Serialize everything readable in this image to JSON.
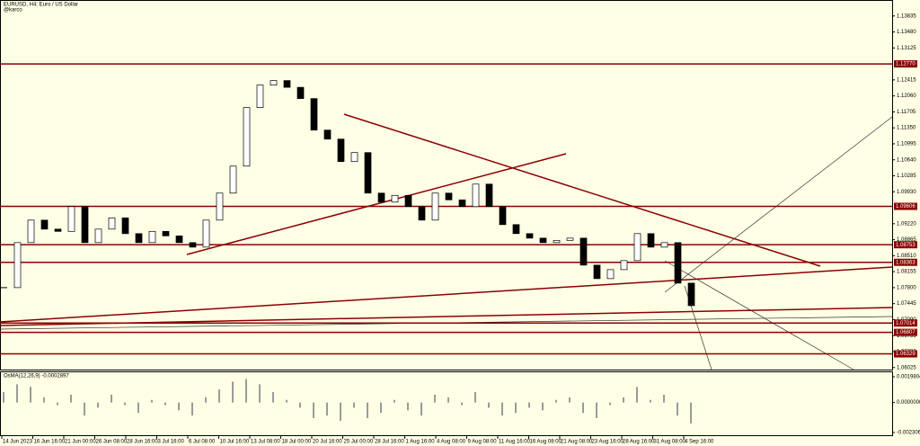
{
  "chart_data": {
    "type": "candlestick",
    "title": "EURUSD, H4:  Euro / US Dollar",
    "subtitle": "@karco",
    "closes": [
      1.078,
      1.088,
      1.093,
      1.091,
      1.0905,
      1.096,
      1.088,
      1.091,
      1.0935,
      1.09,
      1.088,
      1.0905,
      1.0895,
      1.088,
      1.087,
      1.093,
      1.099,
      1.105,
      1.118,
      1.123,
      1.124,
      1.1225,
      1.12,
      1.113,
      1.111,
      1.106,
      1.108,
      1.099,
      1.097,
      1.0985,
      1.096,
      1.093,
      1.099,
      1.0975,
      1.096,
      1.101,
      1.096,
      1.092,
      1.09,
      1.089,
      1.088,
      1.0885,
      1.089,
      1.083,
      1.08,
      1.082,
      1.084,
      1.09,
      1.087,
      1.088,
      1.079,
      1.074
    ],
    "ylim": [
      1.06,
      1.1415
    ],
    "yticks": [
      1.13835,
      {
        "value": 1.1348,
        "label": "1.13480"
      },
      1.13125,
      1.12415,
      {
        "value": 1.1206,
        "label": "1.12060"
      },
      1.11705,
      {
        "value": 1.1135,
        "label": "1.11350"
      },
      1.10995,
      {
        "value": 1.1064,
        "label": "1.10640"
      },
      1.10285,
      {
        "value": 1.0993,
        "label": "1.09930"
      },
      {
        "value": 1.0922,
        "label": "1.09220"
      },
      1.08865,
      {
        "value": 1.0851,
        "label": "1.08510"
      },
      1.08155,
      {
        "value": 1.078,
        "label": "1.07800"
      },
      1.07445,
      {
        "value": 1.0709,
        "label": "1.07090"
      },
      1.06735,
      {
        "value": 1.0638,
        "label": "1.06380"
      },
      1.06025
    ],
    "levels": [
      {
        "value": 1.1277,
        "label": "1.12770"
      },
      1.09606,
      1.08753,
      1.08363,
      1.07014,
      1.06807,
      1.06329
    ],
    "time_labels": [
      "14 Jun 2023",
      "16 Jun 16:00",
      "21 Jun 00:00",
      "26 Jun 08:00",
      "28 Jun 16:00",
      "3 Jul 16:00",
      "6 Jul 08:00",
      "10 Jul 16:00",
      "13 Jul 08:00",
      "18 Jul 00:00",
      "20 Jul 16:00",
      "25 Jul 00:00",
      "28 Jul 16:00",
      "1 Aug 16:00",
      "4 Aug 08:00",
      "9 Aug 08:00",
      "11 Aug 16:00",
      "16 Aug 08:00",
      "21 Aug 08:00",
      "23 Aug 16:00",
      "28 Aug 16:00",
      "31 Aug 08:00",
      "4 Sep 16:00"
    ],
    "osma": {
      "label": "OsMA(12,26,9) -0.0002897",
      "values": [
        0.0008,
        0.0014,
        0.0012,
        0.0004,
        -0.0002,
        0.0006,
        -0.001,
        -0.0004,
        0.0006,
        -0.0002,
        -0.0008,
        0.0002,
        -0.0002,
        -0.0006,
        -0.001,
        0.0004,
        0.001,
        0.0016,
        0.0018,
        0.0014,
        0.0008,
        0.0002,
        -0.0004,
        -0.0012,
        -0.001,
        -0.0014,
        -0.0004,
        -0.0012,
        -0.0008,
        0.0002,
        -0.0006,
        -0.001,
        0.0006,
        0.0004,
        -0.0002,
        0.0008,
        -0.0004,
        -0.001,
        -0.0008,
        -0.0004,
        -0.0006,
        0.0002,
        0.0004,
        -0.0008,
        -0.0012,
        -0.0002,
        0.0004,
        0.0012,
        0.0002,
        0.0006,
        -0.001,
        -0.0016
      ],
      "ylim": [
        -0.0023061,
        0.0019804
      ],
      "yticks": [
        0.0019804,
        {
          "value": 0,
          "label": "0.0000000"
        },
        -0.0023061
      ]
    }
  }
}
